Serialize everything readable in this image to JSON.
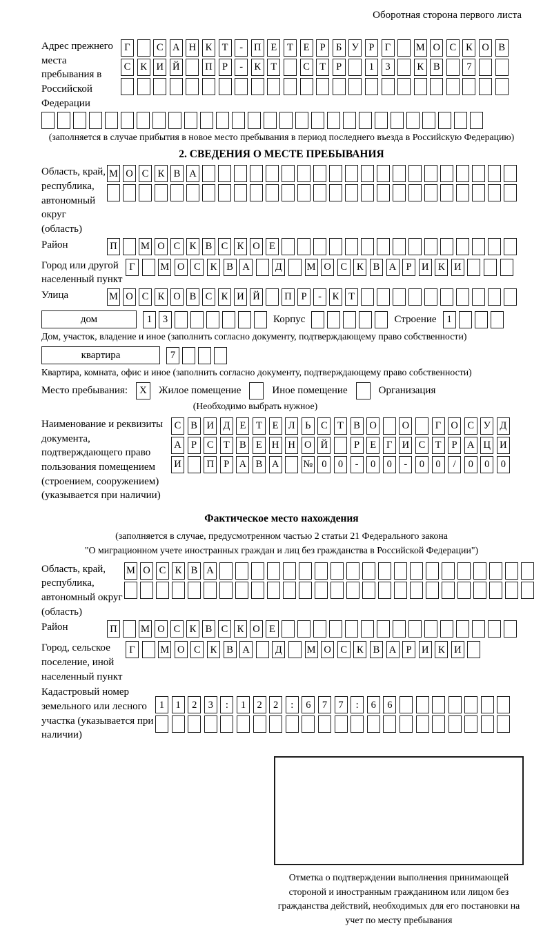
{
  "header": {
    "note": "Оборотная сторона первого листа"
  },
  "prev_address": {
    "label": "Адрес прежнего места пребывания в Российской Федерации",
    "rows": [
      {
        "t": "Г САНКТ-ПЕТЕРБУРГ МОСКОВ",
        "n": 24
      },
      {
        "t": "СКИЙ ПР-КТ СТР 13 КВ 7",
        "n": 24
      },
      {
        "t": "",
        "n": 24
      }
    ],
    "row4": {
      "t": "",
      "n": 28
    },
    "caption": "(заполняется в случае прибытия в новое место пребывания в период последнего въезда в Российскую Федерацию)"
  },
  "section2": {
    "title": "2. СВЕДЕНИЯ О МЕСТЕ ПРЕБЫВАНИЯ",
    "oblast": {
      "label": "Область, край, республика, автономный округ (область)",
      "row1": {
        "t": "МОСКВА",
        "n": 26
      },
      "row2": {
        "t": "",
        "n": 26
      }
    },
    "raion": {
      "label": "Район",
      "row": {
        "t": "П МОСКВСКОЕ",
        "n": 26
      }
    },
    "gorod": {
      "label": "Город или другой населенный пункт",
      "row": {
        "t": "Г МОСКВА Д МОСКВАРИКИ",
        "n": 24
      }
    },
    "ulitsa": {
      "label": "Улица",
      "row": {
        "t": "МОСКОВСКИЙ ПР-КТ",
        "n": 26
      }
    },
    "dom": {
      "label": "дом",
      "cells": {
        "t": "13",
        "n": 8
      },
      "korpus_label": "Корпус",
      "korpus_cells": {
        "t": "",
        "n": 5
      },
      "stroenie_label": "Строение",
      "stroenie_cells": {
        "t": "1",
        "n": 4
      },
      "caption": "Дом, участок, владение и иное (заполнить согласно документу, подтверждающему право собственности)"
    },
    "kvartira": {
      "label": "квартира",
      "cells": {
        "t": "7",
        "n": 4
      },
      "caption": "Квартира, комната, офис и иное (заполнить согласно документу, подтверждающему право собственности)"
    },
    "mesto": {
      "label": "Место пребывания:",
      "chk1": "X",
      "opt1": "Жилое помещение",
      "chk2": "",
      "opt2": "Иное помещение",
      "chk3": "",
      "opt3": "Организация",
      "note": "(Необходимо выбрать нужное)"
    },
    "doc": {
      "label": "Наименование и реквизиты документа, подтверждающего право пользования помещением (строением, сооружением) (указывается при наличии)",
      "rows": [
        {
          "t": "СВИДЕТЕЛЬСТВО О ГОСУД",
          "n": 21
        },
        {
          "t": "АРСТВЕННОЙ РЕГИСТРАЦИ",
          "n": 21
        },
        {
          "t": "И ПРАВА №00-00-00/000",
          "n": 21
        }
      ]
    }
  },
  "fact": {
    "title": "Фактическое место нахождения",
    "subtitle1": "(заполняется в случае, предусмотренном частью 2 статьи 21 Федерального закона",
    "subtitle2": "\"О миграционном учете иностранных граждан и лиц без гражданства в Российской Федерации\")",
    "oblast": {
      "label": "Область, край, республика, автономный округ (область)",
      "row1": {
        "t": "МОСКВА",
        "n": 26
      },
      "row2": {
        "t": "",
        "n": 26
      }
    },
    "raion": {
      "label": "Район",
      "row": {
        "t": "П МОСКВСКОЕ",
        "n": 26
      }
    },
    "gorod": {
      "label": "Город, сельское поселение, иной населенный пункт",
      "row": {
        "t": "Г МОСКВА Д МОСКВАРИКИ",
        "n": 22
      }
    },
    "kadastr": {
      "label": "Кадастровый номер земельного или лесного участка (указывается при наличии)",
      "row1": {
        "t": "1123:122:677:66",
        "n": 22
      },
      "row2": {
        "t": "",
        "n": 22
      }
    },
    "stamp_caption": "Отметка о подтверждении выполнения принимающей стороной и иностранным гражданином или лицом без гражданства действий, необходимых для его постановки на учет по месту пребывания"
  }
}
